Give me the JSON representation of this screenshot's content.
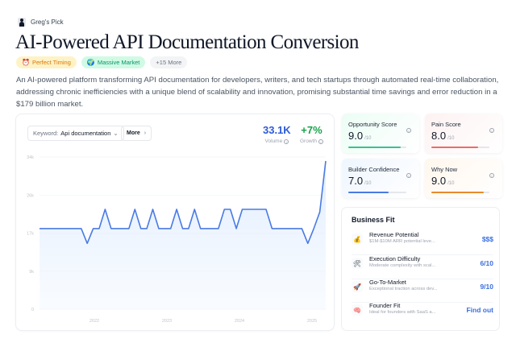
{
  "header": {
    "pick_label": "Greg's Pick",
    "title": "AI-Powered API Documentation Conversion",
    "badges": [
      {
        "icon": "alarm-clock-icon",
        "glyph": "⏰",
        "label": "Perfect Timing"
      },
      {
        "icon": "globe-icon",
        "glyph": "🌍",
        "label": "Massive Market"
      },
      {
        "label": "+15 More"
      }
    ],
    "description": "An AI-powered platform transforming API documentation for developers, writers, and tech startups through automated real-time collaboration, addressing chronic inefficiencies with a unique blend of scalability and innovation, promising substantial time savings and error reduction in a $179 billion market."
  },
  "trend": {
    "keyword_label": "Keyword:",
    "keyword_value": "Api documentation",
    "more_label": "More",
    "volume_value": "33.1K",
    "volume_label": "Volume",
    "growth_value": "+7%",
    "growth_label": "Growth",
    "colors": {
      "volume": "#2d5bd8",
      "growth": "#16a34a",
      "line": "#4a7be3"
    }
  },
  "chart_data": {
    "type": "area",
    "title": "Search volume: Api documentation",
    "xlabel": "",
    "ylabel": "",
    "ylim": [
      0,
      34000
    ],
    "yticks": [
      "0",
      "9k",
      "17k",
      "26k",
      "34k"
    ],
    "xticks": [
      "2022",
      "2023",
      "2024",
      "2025"
    ],
    "grid": true,
    "x": [
      0,
      1,
      2,
      3,
      4,
      5,
      6,
      7,
      8,
      9,
      10,
      11,
      12,
      13,
      14,
      15,
      16,
      17,
      18,
      19,
      20,
      21,
      22,
      23,
      24,
      25,
      26,
      27,
      28,
      29,
      30,
      31,
      32,
      33,
      34,
      35,
      36,
      37,
      38,
      39,
      40,
      41,
      42,
      43,
      44,
      45,
      46,
      47
    ],
    "values": [
      18000,
      18000,
      18000,
      18000,
      18000,
      18000,
      18000,
      18000,
      14700,
      18000,
      18000,
      22300,
      18000,
      18000,
      18000,
      18000,
      22300,
      18000,
      18000,
      22300,
      18000,
      18000,
      18000,
      22300,
      18000,
      18000,
      22300,
      18000,
      18000,
      18000,
      18000,
      22300,
      22300,
      18000,
      22300,
      22300,
      22300,
      22300,
      22300,
      18000,
      18000,
      18000,
      18000,
      18000,
      18000,
      14700,
      18000,
      21700
    ],
    "final_value": 33100
  },
  "scores": [
    {
      "label": "Opportunity Score",
      "value": "9.0",
      "max": "/10",
      "pct": 90,
      "color": "#34c38f"
    },
    {
      "label": "Pain Score",
      "value": "8.0",
      "max": "/10",
      "pct": 80,
      "color": "#f06a6a"
    },
    {
      "label": "Builder Confidence",
      "value": "7.0",
      "max": "/10",
      "pct": 70,
      "color": "#4a7be3"
    },
    {
      "label": "Why Now",
      "value": "9.0",
      "max": "/10",
      "pct": 90,
      "color": "#e88a2e"
    }
  ],
  "business_fit": {
    "title": "Business Fit",
    "rows": [
      {
        "icon": "money-bag-icon",
        "glyph": "💰",
        "title": "Revenue Potential",
        "sub": "$1M-$10M ARR potential leve...",
        "value": "$$$"
      },
      {
        "icon": "tools-icon",
        "glyph": "🛠",
        "title": "Execution Difficulty",
        "sub": "Moderate complexity with scal...",
        "value": "6/10"
      },
      {
        "icon": "rocket-icon",
        "glyph": "🚀",
        "title": "Go-To-Market",
        "sub": "Exceptional traction across dev...",
        "value": "9/10"
      },
      {
        "icon": "brain-icon",
        "glyph": "🧠",
        "title": "Founder Fit",
        "sub": "Ideal for founders with SaaS a...",
        "value": "Find out"
      }
    ]
  }
}
